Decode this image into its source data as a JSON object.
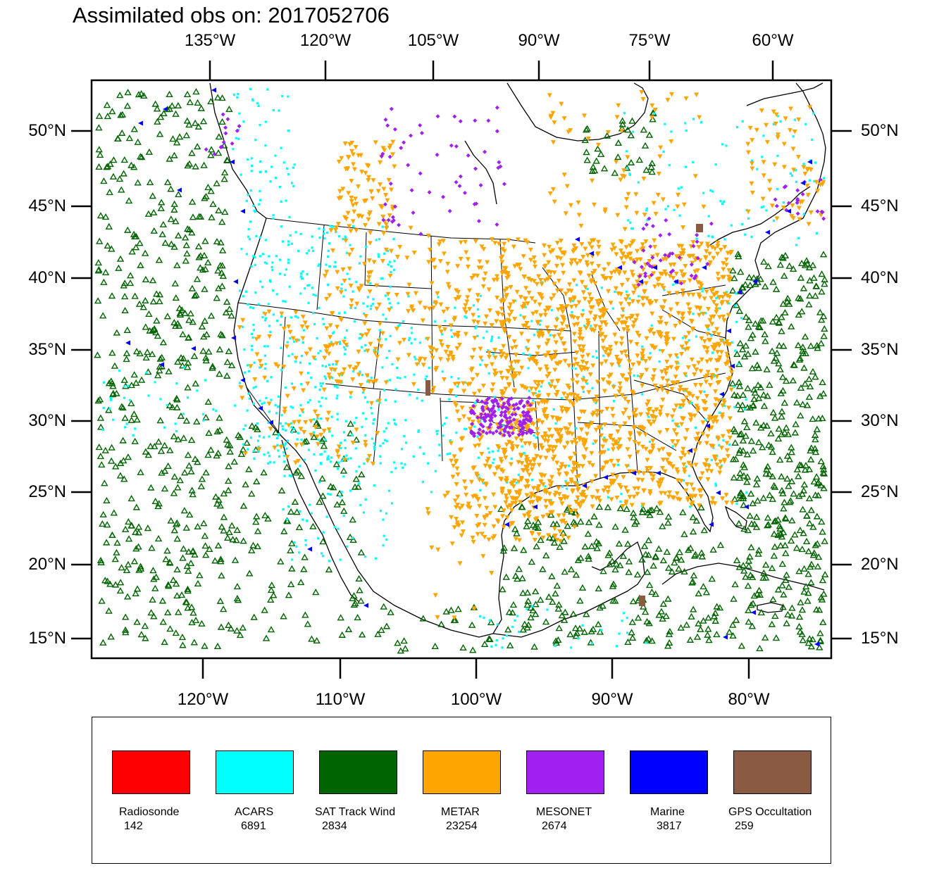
{
  "title": "Assimilated obs on: 2017052706",
  "axes": {
    "top_ticks": [
      "135°W",
      "120°W",
      "105°W",
      "90°W",
      "75°W",
      "60°W"
    ],
    "bottom_ticks": [
      "120°W",
      "110°W",
      "100°W",
      "90°W",
      "80°W"
    ],
    "left_ticks": [
      "50°N",
      "45°N",
      "40°N",
      "35°N",
      "30°N",
      "25°N",
      "20°N",
      "15°N"
    ],
    "right_ticks": [
      "50°N",
      "45°N",
      "40°N",
      "35°N",
      "30°N",
      "25°N",
      "20°N",
      "15°N"
    ]
  },
  "legend": [
    {
      "label": "Radiosonde",
      "count": "142",
      "color": "#ff0000"
    },
    {
      "label": "ACARS",
      "count": "6891",
      "color": "#00ffff"
    },
    {
      "label": "SAT Track Wind",
      "count": "2834",
      "color": "#006400"
    },
    {
      "label": "METAR",
      "count": "23254",
      "color": "#ffa500"
    },
    {
      "label": "MESONET",
      "count": "2674",
      "color": "#a020f0"
    },
    {
      "label": "Marine",
      "count": "3817",
      "color": "#0000ff"
    },
    {
      "label": "GPS Occultation",
      "count": "259",
      "color": "#8b5a42"
    }
  ]
}
